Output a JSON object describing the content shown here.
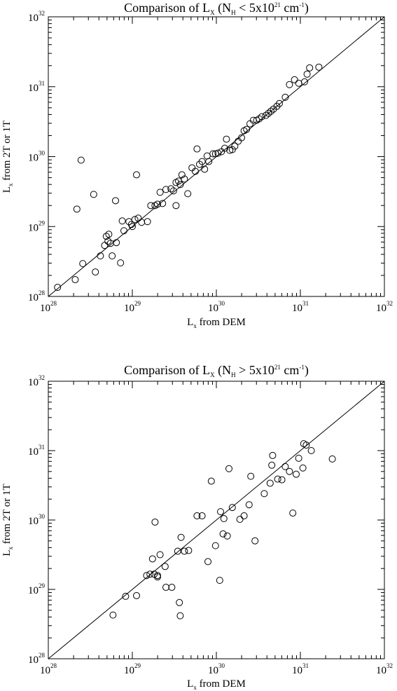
{
  "chart_data": [
    {
      "type": "scatter",
      "title": {
        "prefix": "Comparison of L",
        "sub": "X",
        "mid1": " (N",
        "sub2": "H",
        "mid2": " < 5x10",
        "sup": "21",
        "mid3": " cm",
        "sup2": "-1",
        "suffix": ")"
      },
      "xlabel": {
        "prefix": "L",
        "sub": "x",
        "suffix": " from DEM"
      },
      "ylabel": {
        "prefix": "L",
        "sub": "x",
        "suffix": " from 2T or 1T"
      },
      "scale": "log",
      "xlim": [
        1e+28,
        1e+32
      ],
      "ylim": [
        1e+28,
        1e+32
      ],
      "ticks": [
        {
          "base": "10",
          "exp": "28"
        },
        {
          "base": "10",
          "exp": "29"
        },
        {
          "base": "10",
          "exp": "30"
        },
        {
          "base": "10",
          "exp": "31"
        },
        {
          "base": "10",
          "exp": "32"
        }
      ],
      "reference_line": "y = x",
      "marker": "open-circle",
      "points_log10": [
        [
          28.11,
          28.13
        ],
        [
          28.32,
          28.24
        ],
        [
          28.41,
          28.47
        ],
        [
          28.56,
          28.35
        ],
        [
          28.62,
          28.58
        ],
        [
          28.34,
          29.25
        ],
        [
          28.39,
          29.95
        ],
        [
          28.54,
          29.46
        ],
        [
          28.67,
          28.73
        ],
        [
          28.71,
          28.79
        ],
        [
          28.74,
          28.76
        ],
        [
          28.69,
          28.86
        ],
        [
          28.72,
          28.89
        ],
        [
          28.76,
          28.58
        ],
        [
          28.81,
          28.77
        ],
        [
          28.8,
          29.37
        ],
        [
          28.86,
          28.48
        ],
        [
          28.9,
          28.94
        ],
        [
          28.88,
          29.08
        ],
        [
          28.96,
          29.07
        ],
        [
          28.99,
          29.03
        ],
        [
          29.03,
          29.1
        ],
        [
          29.07,
          29.12
        ],
        [
          29.11,
          29.06
        ],
        [
          29.0,
          29.0
        ],
        [
          29.05,
          29.74
        ],
        [
          29.18,
          29.07
        ],
        [
          29.22,
          29.3
        ],
        [
          29.27,
          29.3
        ],
        [
          29.3,
          29.32
        ],
        [
          29.33,
          29.49
        ],
        [
          29.36,
          29.33
        ],
        [
          29.4,
          29.53
        ],
        [
          29.46,
          29.54
        ],
        [
          29.49,
          29.51
        ],
        [
          29.52,
          29.3
        ],
        [
          29.52,
          29.63
        ],
        [
          29.55,
          29.65
        ],
        [
          29.57,
          29.6
        ],
        [
          29.59,
          29.74
        ],
        [
          29.62,
          29.68
        ],
        [
          29.66,
          29.47
        ],
        [
          29.71,
          29.84
        ],
        [
          29.75,
          29.79
        ],
        [
          29.77,
          30.11
        ],
        [
          29.8,
          29.89
        ],
        [
          29.83,
          29.93
        ],
        [
          29.86,
          29.82
        ],
        [
          29.89,
          30.01
        ],
        [
          29.91,
          29.93
        ],
        [
          29.96,
          30.04
        ],
        [
          29.99,
          30.04
        ],
        [
          30.02,
          30.05
        ],
        [
          30.06,
          30.07
        ],
        [
          30.1,
          30.12
        ],
        [
          30.12,
          30.25
        ],
        [
          30.16,
          30.09
        ],
        [
          30.19,
          30.1
        ],
        [
          30.22,
          30.15
        ],
        [
          30.26,
          30.22
        ],
        [
          30.3,
          30.27
        ],
        [
          30.33,
          30.37
        ],
        [
          30.36,
          30.39
        ],
        [
          30.4,
          30.47
        ],
        [
          30.44,
          30.52
        ],
        [
          30.48,
          30.52
        ],
        [
          30.51,
          30.54
        ],
        [
          30.54,
          30.57
        ],
        [
          30.59,
          30.59
        ],
        [
          30.62,
          30.62
        ],
        [
          30.65,
          30.65
        ],
        [
          30.68,
          30.68
        ],
        [
          30.72,
          30.72
        ],
        [
          30.75,
          30.76
        ],
        [
          30.82,
          30.85
        ],
        [
          30.87,
          31.03
        ],
        [
          30.93,
          31.1
        ],
        [
          30.98,
          31.05
        ],
        [
          31.05,
          31.07
        ],
        [
          31.08,
          31.18
        ],
        [
          31.11,
          31.27
        ],
        [
          31.22,
          31.28
        ]
      ]
    },
    {
      "type": "scatter",
      "title": {
        "prefix": "Comparison of L",
        "sub": "X",
        "mid1": " (N",
        "sub2": "H",
        "mid2": " > 5x10",
        "sup": "21",
        "mid3": " cm",
        "sup2": "-1",
        "suffix": ")"
      },
      "xlabel": {
        "prefix": "L",
        "sub": "x",
        "suffix": " from DEM"
      },
      "ylabel": {
        "prefix": "L",
        "sub": "x",
        "suffix": " from 2T or 1T"
      },
      "scale": "log",
      "xlim": [
        1e+28,
        1e+32
      ],
      "ylim": [
        1e+28,
        1e+32
      ],
      "ticks": [
        {
          "base": "10",
          "exp": "28"
        },
        {
          "base": "10",
          "exp": "29"
        },
        {
          "base": "10",
          "exp": "30"
        },
        {
          "base": "10",
          "exp": "31"
        },
        {
          "base": "10",
          "exp": "32"
        }
      ],
      "reference_line": "y = x",
      "marker": "open-circle",
      "points_log10": [
        [
          28.77,
          28.63
        ],
        [
          28.92,
          28.9
        ],
        [
          29.05,
          28.91
        ],
        [
          29.17,
          29.2
        ],
        [
          29.21,
          29.22
        ],
        [
          29.26,
          29.22
        ],
        [
          29.3,
          29.2
        ],
        [
          29.3,
          29.18
        ],
        [
          29.24,
          29.44
        ],
        [
          29.27,
          29.97
        ],
        [
          29.33,
          29.5
        ],
        [
          29.39,
          29.33
        ],
        [
          29.4,
          29.03
        ],
        [
          29.47,
          29.03
        ],
        [
          29.54,
          29.55
        ],
        [
          29.56,
          28.81
        ],
        [
          29.57,
          28.62
        ],
        [
          29.58,
          29.75
        ],
        [
          29.62,
          29.55
        ],
        [
          29.67,
          29.56
        ],
        [
          29.77,
          30.06
        ],
        [
          29.83,
          30.06
        ],
        [
          29.9,
          29.4
        ],
        [
          29.94,
          30.56
        ],
        [
          29.99,
          29.63
        ],
        [
          30.04,
          29.13
        ],
        [
          30.05,
          30.12
        ],
        [
          30.09,
          30.02
        ],
        [
          30.08,
          29.8
        ],
        [
          30.13,
          29.77
        ],
        [
          30.15,
          30.74
        ],
        [
          30.19,
          30.18
        ],
        [
          30.28,
          30.01
        ],
        [
          30.33,
          30.06
        ],
        [
          30.39,
          30.22
        ],
        [
          30.41,
          30.63
        ],
        [
          30.46,
          29.7
        ],
        [
          30.57,
          30.38
        ],
        [
          30.64,
          30.53
        ],
        [
          30.66,
          30.79
        ],
        [
          30.67,
          30.93
        ],
        [
          30.73,
          30.59
        ],
        [
          30.78,
          30.58
        ],
        [
          30.82,
          30.77
        ],
        [
          30.87,
          30.7
        ],
        [
          30.91,
          30.1
        ],
        [
          30.95,
          30.66
        ],
        [
          30.98,
          30.89
        ],
        [
          31.03,
          30.75
        ],
        [
          31.04,
          31.1
        ],
        [
          31.07,
          31.08
        ],
        [
          31.13,
          31.0
        ],
        [
          31.38,
          30.88
        ]
      ]
    }
  ]
}
